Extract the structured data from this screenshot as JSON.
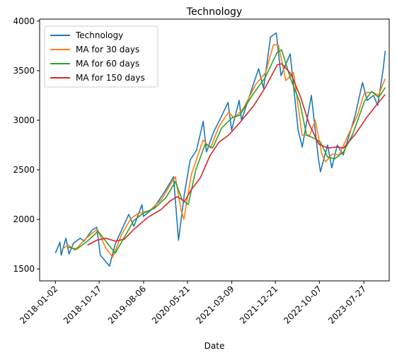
{
  "chart_data": {
    "type": "line",
    "title": "Technology",
    "xlabel": "Date",
    "ylabel": "",
    "x_ticks": [
      "2018-01-02",
      "2018-10-17",
      "2019-08-06",
      "2020-05-21",
      "2021-03-09",
      "2021-12-21",
      "2022-10-07",
      "2023-07-27"
    ],
    "y_ticks": [
      1500,
      2000,
      2500,
      3000,
      3500,
      4000
    ],
    "xlim": [
      "2017-09-20",
      "2024-01-10"
    ],
    "ylim": [
      1380,
      4020
    ],
    "grid": false,
    "legend_position": "top-left",
    "series": [
      {
        "name": "Technology",
        "color": "#1f77b4",
        "points": [
          [
            "2018-01-02",
            1660
          ],
          [
            "2018-02-01",
            1770
          ],
          [
            "2018-02-09",
            1640
          ],
          [
            "2018-03-12",
            1810
          ],
          [
            "2018-04-02",
            1650
          ],
          [
            "2018-05-01",
            1760
          ],
          [
            "2018-06-15",
            1810
          ],
          [
            "2018-07-10",
            1780
          ],
          [
            "2018-08-30",
            1890
          ],
          [
            "2018-10-01",
            1920
          ],
          [
            "2018-10-25",
            1640
          ],
          [
            "2018-12-24",
            1530
          ],
          [
            "2019-01-31",
            1750
          ],
          [
            "2019-04-30",
            2050
          ],
          [
            "2019-06-03",
            1930
          ],
          [
            "2019-07-26",
            2150
          ],
          [
            "2019-08-05",
            2030
          ],
          [
            "2019-10-15",
            2120
          ],
          [
            "2019-12-31",
            2300
          ],
          [
            "2020-02-19",
            2430
          ],
          [
            "2020-03-23",
            1790
          ],
          [
            "2020-04-30",
            2250
          ],
          [
            "2020-06-08",
            2600
          ],
          [
            "2020-07-20",
            2700
          ],
          [
            "2020-09-02",
            2990
          ],
          [
            "2020-09-23",
            2680
          ],
          [
            "2020-11-09",
            2880
          ],
          [
            "2020-12-31",
            3040
          ],
          [
            "2021-02-12",
            3180
          ],
          [
            "2021-03-08",
            2900
          ],
          [
            "2021-04-26",
            3200
          ],
          [
            "2021-05-12",
            3000
          ],
          [
            "2021-07-26",
            3350
          ],
          [
            "2021-09-02",
            3520
          ],
          [
            "2021-10-04",
            3320
          ],
          [
            "2021-11-19",
            3840
          ],
          [
            "2021-12-27",
            3880
          ],
          [
            "2022-01-27",
            3450
          ],
          [
            "2022-03-29",
            3670
          ],
          [
            "2022-05-20",
            2900
          ],
          [
            "2022-06-16",
            2730
          ],
          [
            "2022-08-15",
            3250
          ],
          [
            "2022-09-30",
            2620
          ],
          [
            "2022-10-14",
            2480
          ],
          [
            "2022-11-30",
            2750
          ],
          [
            "2022-12-28",
            2520
          ],
          [
            "2023-02-02",
            2750
          ],
          [
            "2023-03-13",
            2650
          ],
          [
            "2023-05-31",
            3050
          ],
          [
            "2023-07-18",
            3380
          ],
          [
            "2023-08-18",
            3200
          ],
          [
            "2023-09-29",
            3250
          ],
          [
            "2023-10-26",
            3150
          ],
          [
            "2023-11-30",
            3500
          ],
          [
            "2023-12-15",
            3700
          ]
        ]
      },
      {
        "name": "MA for 30 days",
        "color": "#ff7f0e",
        "points": [
          [
            "2018-02-14",
            1700
          ],
          [
            "2018-03-28",
            1740
          ],
          [
            "2018-05-10",
            1690
          ],
          [
            "2018-07-10",
            1790
          ],
          [
            "2018-08-31",
            1860
          ],
          [
            "2018-10-05",
            1900
          ],
          [
            "2018-11-30",
            1710
          ],
          [
            "2019-01-15",
            1620
          ],
          [
            "2019-03-15",
            1850
          ],
          [
            "2019-05-15",
            2010
          ],
          [
            "2019-07-01",
            2060
          ],
          [
            "2019-09-16",
            2090
          ],
          [
            "2019-12-02",
            2200
          ],
          [
            "2020-02-14",
            2390
          ],
          [
            "2020-03-02",
            2430
          ],
          [
            "2020-04-08",
            2100
          ],
          [
            "2020-04-27",
            2000
          ],
          [
            "2020-06-15",
            2450
          ],
          [
            "2020-09-01",
            2800
          ],
          [
            "2020-10-20",
            2720
          ],
          [
            "2020-12-15",
            2940
          ],
          [
            "2021-02-16",
            3080
          ],
          [
            "2021-03-25",
            3020
          ],
          [
            "2021-05-25",
            3120
          ],
          [
            "2021-08-13",
            3360
          ],
          [
            "2021-10-18",
            3480
          ],
          [
            "2021-12-08",
            3760
          ],
          [
            "2022-01-10",
            3760
          ],
          [
            "2022-02-28",
            3400
          ],
          [
            "2022-04-20",
            3480
          ],
          [
            "2022-06-15",
            2850
          ],
          [
            "2022-08-05",
            2850
          ],
          [
            "2022-09-10",
            3000
          ],
          [
            "2022-10-24",
            2650
          ],
          [
            "2022-11-18",
            2580
          ],
          [
            "2022-12-30",
            2660
          ],
          [
            "2023-02-15",
            2650
          ],
          [
            "2023-04-14",
            2850
          ],
          [
            "2023-06-15",
            3050
          ],
          [
            "2023-07-31",
            3280
          ],
          [
            "2023-09-29",
            3280
          ],
          [
            "2023-10-30",
            3250
          ],
          [
            "2023-12-15",
            3420
          ]
        ]
      },
      {
        "name": "MA for 60 days",
        "color": "#2ca02c",
        "points": [
          [
            "2018-03-28",
            1720
          ],
          [
            "2018-05-22",
            1700
          ],
          [
            "2018-07-31",
            1780
          ],
          [
            "2018-10-10",
            1880
          ],
          [
            "2018-11-30",
            1780
          ],
          [
            "2019-01-31",
            1660
          ],
          [
            "2019-04-01",
            1820
          ],
          [
            "2019-06-03",
            1990
          ],
          [
            "2019-08-01",
            2060
          ],
          [
            "2019-10-15",
            2110
          ],
          [
            "2019-12-31",
            2220
          ],
          [
            "2020-03-02",
            2380
          ],
          [
            "2020-04-15",
            2200
          ],
          [
            "2020-05-26",
            2150
          ],
          [
            "2020-07-15",
            2500
          ],
          [
            "2020-09-15",
            2760
          ],
          [
            "2020-11-03",
            2720
          ],
          [
            "2020-12-31",
            2920
          ],
          [
            "2021-03-15",
            3030
          ],
          [
            "2021-04-30",
            3050
          ],
          [
            "2021-07-30",
            3270
          ],
          [
            "2021-10-15",
            3430
          ],
          [
            "2021-12-31",
            3680
          ],
          [
            "2022-01-31",
            3710
          ],
          [
            "2022-03-31",
            3420
          ],
          [
            "2022-05-31",
            3180
          ],
          [
            "2022-07-15",
            2850
          ],
          [
            "2022-09-01",
            2820
          ],
          [
            "2022-10-14",
            2780
          ],
          [
            "2022-11-30",
            2630
          ],
          [
            "2023-01-15",
            2610
          ],
          [
            "2023-03-15",
            2680
          ],
          [
            "2023-05-15",
            2860
          ],
          [
            "2023-07-31",
            3190
          ],
          [
            "2023-09-15",
            3290
          ],
          [
            "2023-11-01",
            3230
          ],
          [
            "2023-12-15",
            3330
          ]
        ]
      },
      {
        "name": "MA for 150 days",
        "color": "#d62728",
        "points": [
          [
            "2018-08-01",
            1740
          ],
          [
            "2018-10-01",
            1790
          ],
          [
            "2018-11-30",
            1810
          ],
          [
            "2019-02-01",
            1780
          ],
          [
            "2019-04-01",
            1800
          ],
          [
            "2019-06-03",
            1900
          ],
          [
            "2019-09-03",
            2020
          ],
          [
            "2019-11-29",
            2100
          ],
          [
            "2020-01-31",
            2190
          ],
          [
            "2020-03-16",
            2230
          ],
          [
            "2020-05-01",
            2180
          ],
          [
            "2020-06-15",
            2300
          ],
          [
            "2020-08-14",
            2420
          ],
          [
            "2020-10-15",
            2640
          ],
          [
            "2020-12-15",
            2780
          ],
          [
            "2021-02-16",
            2850
          ],
          [
            "2021-05-03",
            2980
          ],
          [
            "2021-08-02",
            3150
          ],
          [
            "2021-10-15",
            3330
          ],
          [
            "2022-01-03",
            3560
          ],
          [
            "2022-02-01",
            3570
          ],
          [
            "2022-04-01",
            3470
          ],
          [
            "2022-06-01",
            3250
          ],
          [
            "2022-08-01",
            2960
          ],
          [
            "2022-10-03",
            2760
          ],
          [
            "2022-11-30",
            2720
          ],
          [
            "2023-02-01",
            2730
          ],
          [
            "2023-03-15",
            2720
          ],
          [
            "2023-06-01",
            2860
          ],
          [
            "2023-08-15",
            3030
          ],
          [
            "2023-10-16",
            3150
          ],
          [
            "2023-12-15",
            3260
          ]
        ]
      }
    ]
  }
}
